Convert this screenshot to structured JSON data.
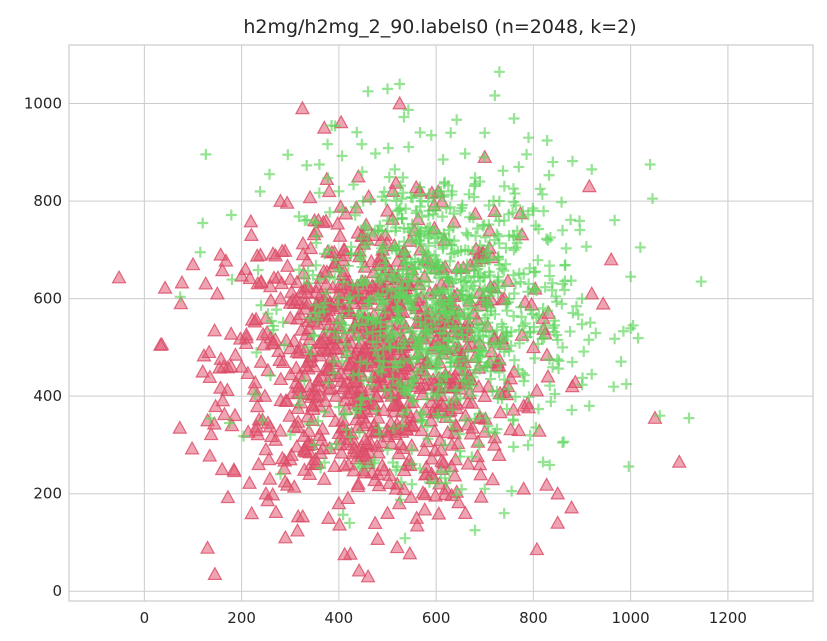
{
  "chart_data": {
    "type": "scatter",
    "title": "h2mg/h2mg_2_90.labels0 (n=2048, k=2)",
    "xlabel": "",
    "ylabel": "",
    "xlim": [
      -155,
      1375
    ],
    "ylim": [
      -20,
      1120
    ],
    "xticks": [
      0,
      200,
      400,
      600,
      800,
      1000,
      1200
    ],
    "yticks": [
      0,
      200,
      400,
      600,
      800,
      1000
    ],
    "grid": true,
    "series": [
      {
        "marker": "triangle",
        "color": "#e05a72",
        "count": 1024,
        "center": [
          470,
          470
        ],
        "spread": [
          150,
          150
        ],
        "points": [
          [
            145,
            35
          ],
          [
            460,
            30
          ],
          [
            520,
            90
          ],
          [
            290,
            110
          ],
          [
            400,
            180
          ],
          [
            500,
            160
          ],
          [
            560,
            150
          ],
          [
            660,
            160
          ],
          [
            850,
            140
          ],
          [
            160,
            250
          ],
          [
            250,
            200
          ],
          [
            780,
            210
          ],
          [
            850,
            200
          ],
          [
            1100,
            265
          ],
          [
            1050,
            355
          ],
          [
            150,
            610
          ],
          [
            75,
            590
          ],
          [
            100,
            670
          ],
          [
            220,
            730
          ],
          [
            280,
            800
          ],
          [
            325,
            990
          ],
          [
            525,
            1000
          ],
          [
            370,
            950
          ],
          [
            700,
            890
          ],
          [
            915,
            830
          ],
          [
            960,
            680
          ],
          [
            920,
            610
          ],
          [
            880,
            420
          ],
          [
            830,
            440
          ],
          [
            770,
            330
          ],
          [
            120,
            450
          ],
          [
            130,
            350
          ],
          [
            180,
            340
          ],
          [
            200,
            460
          ],
          [
            230,
            400
          ],
          [
            260,
            520
          ],
          [
            300,
            560
          ],
          [
            320,
            500
          ],
          [
            340,
            420
          ],
          [
            360,
            380
          ],
          [
            380,
            460
          ],
          [
            390,
            520
          ],
          [
            400,
            610
          ],
          [
            410,
            700
          ],
          [
            420,
            570
          ],
          [
            430,
            480
          ],
          [
            440,
            400
          ],
          [
            450,
            340
          ],
          [
            460,
            300
          ],
          [
            470,
            540
          ],
          [
            480,
            620
          ],
          [
            490,
            700
          ],
          [
            500,
            780
          ],
          [
            510,
            450
          ],
          [
            520,
            380
          ],
          [
            530,
            520
          ],
          [
            540,
            600
          ],
          [
            550,
            660
          ],
          [
            560,
            420
          ],
          [
            570,
            330
          ],
          [
            580,
            470
          ],
          [
            590,
            540
          ],
          [
            600,
            380
          ],
          [
            610,
            290
          ],
          [
            620,
            520
          ],
          [
            640,
            440
          ],
          [
            660,
            360
          ],
          [
            680,
            480
          ],
          [
            700,
            400
          ],
          [
            720,
            520
          ],
          [
            740,
            600
          ],
          [
            760,
            450
          ],
          [
            780,
            380
          ],
          [
            800,
            500
          ],
          [
            820,
            560
          ],
          [
            350,
            760
          ],
          [
            380,
            820
          ],
          [
            440,
            850
          ],
          [
            470,
            730
          ],
          [
            330,
            620
          ],
          [
            300,
            640
          ],
          [
            280,
            600
          ],
          [
            250,
            560
          ],
          [
            240,
            470
          ],
          [
            210,
            520
          ],
          [
            230,
            330
          ],
          [
            270,
            310
          ],
          [
            300,
            270
          ],
          [
            340,
            240
          ],
          [
            370,
            230
          ],
          [
            420,
            260
          ],
          [
            440,
            220
          ],
          [
            480,
            240
          ],
          [
            520,
            220
          ],
          [
            540,
            260
          ],
          [
            580,
            240
          ],
          [
            620,
            210
          ],
          [
            640,
            270
          ],
          [
            690,
            260
          ],
          [
            720,
            300
          ]
        ]
      },
      {
        "marker": "plus",
        "color": "#5cd65a",
        "count": 1024,
        "center": [
          600,
          580
        ],
        "spread": [
          140,
          150
        ],
        "points": [
          [
            120,
            755
          ],
          [
            115,
            695
          ],
          [
            175,
            345
          ],
          [
            295,
            895
          ],
          [
            360,
            875
          ],
          [
            385,
            955
          ],
          [
            460,
            1025
          ],
          [
            500,
            1030
          ],
          [
            525,
            1040
          ],
          [
            730,
            1065
          ],
          [
            590,
            935
          ],
          [
            630,
            940
          ],
          [
            700,
            940
          ],
          [
            790,
            930
          ],
          [
            840,
            880
          ],
          [
            920,
            865
          ],
          [
            1040,
            875
          ],
          [
            1045,
            805
          ],
          [
            1020,
            705
          ],
          [
            1145,
            635
          ],
          [
            1000,
            645
          ],
          [
            1005,
            545
          ],
          [
            920,
            445
          ],
          [
            915,
            380
          ],
          [
            1060,
            360
          ],
          [
            1120,
            355
          ],
          [
            860,
            305
          ],
          [
            820,
            265
          ],
          [
            700,
            210
          ],
          [
            740,
            160
          ],
          [
            680,
            125
          ],
          [
            550,
            290
          ],
          [
            500,
            290
          ],
          [
            440,
            260
          ],
          [
            350,
            300
          ],
          [
            280,
            240
          ],
          [
            330,
            760
          ],
          [
            400,
            820
          ],
          [
            450,
            800
          ],
          [
            480,
            740
          ],
          [
            520,
            700
          ],
          [
            540,
            660
          ],
          [
            560,
            620
          ],
          [
            580,
            600
          ],
          [
            590,
            560
          ],
          [
            600,
            580
          ],
          [
            610,
            590
          ],
          [
            620,
            570
          ],
          [
            630,
            610
          ],
          [
            640,
            640
          ],
          [
            650,
            660
          ],
          [
            660,
            600
          ],
          [
            670,
            560
          ],
          [
            680,
            520
          ],
          [
            690,
            480
          ],
          [
            700,
            620
          ],
          [
            710,
            680
          ],
          [
            720,
            720
          ],
          [
            740,
            760
          ],
          [
            760,
            700
          ],
          [
            780,
            650
          ],
          [
            800,
            620
          ],
          [
            820,
            580
          ],
          [
            840,
            540
          ],
          [
            860,
            500
          ],
          [
            880,
            470
          ],
          [
            900,
            600
          ],
          [
            640,
            480
          ],
          [
            620,
            440
          ],
          [
            600,
            400
          ],
          [
            580,
            460
          ],
          [
            560,
            500
          ],
          [
            540,
            540
          ],
          [
            520,
            580
          ],
          [
            500,
            620
          ],
          [
            480,
            660
          ],
          [
            460,
            560
          ],
          [
            440,
            520
          ],
          [
            420,
            600
          ],
          [
            400,
            660
          ],
          [
            380,
            700
          ],
          [
            360,
            640
          ],
          [
            340,
            560
          ],
          [
            570,
            800
          ],
          [
            610,
            820
          ],
          [
            650,
            780
          ],
          [
            690,
            840
          ],
          [
            730,
            800
          ],
          [
            770,
            870
          ],
          [
            800,
            780
          ],
          [
            830,
            720
          ],
          [
            860,
            740
          ],
          [
            650,
            540
          ],
          [
            700,
            560
          ],
          [
            550,
            720
          ],
          [
            500,
            760
          ],
          [
            600,
            680
          ],
          [
            620,
            720
          ],
          [
            660,
            700
          ],
          [
            600,
            500
          ]
        ]
      }
    ]
  }
}
